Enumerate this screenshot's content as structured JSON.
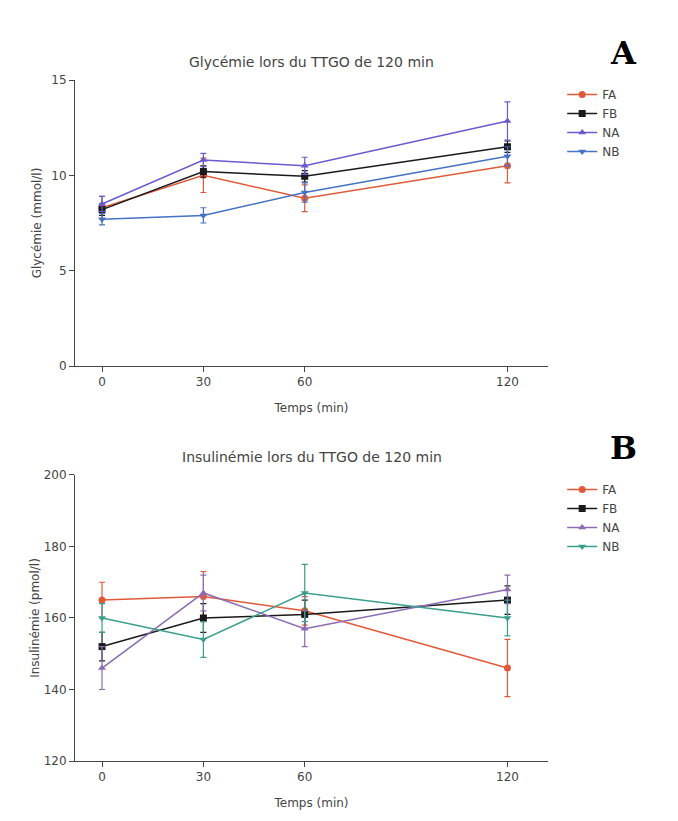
{
  "chart_data": [
    {
      "type": "line",
      "title": "Glycémie lors du TTGO de 120 min",
      "xlabel": "Temps (min)",
      "ylabel": "Glycémie (mmol/l)",
      "annotations": [
        "A"
      ],
      "x": [
        0,
        30,
        60,
        120
      ],
      "xlim": [
        -8,
        132
      ],
      "xticks": [
        0,
        30,
        60,
        120
      ],
      "ylim": [
        0,
        15
      ],
      "yticks": [
        0,
        5,
        10,
        15
      ],
      "grid": false,
      "legend": "right",
      "series": [
        {
          "name": "FA",
          "color": "#E05A3A",
          "marker": "circle",
          "line_style": "solid",
          "values": [
            8.3,
            10.0,
            8.8,
            10.5
          ],
          "errors": [
            0.6,
            0.9,
            0.7,
            0.9
          ]
        },
        {
          "name": "FB",
          "color": "#1a1a1a",
          "marker": "square",
          "line_style": "solid",
          "values": [
            8.2,
            10.2,
            9.95,
            11.5
          ],
          "errors": [
            0.3,
            0.3,
            0.3,
            0.3
          ]
        },
        {
          "name": "NA",
          "color": "#6A5ACD",
          "marker": "triangle-up",
          "line_style": "solid",
          "values": [
            8.5,
            10.8,
            10.5,
            12.85
          ],
          "errors": [
            0.4,
            0.35,
            0.45,
            1.0
          ]
        },
        {
          "name": "NB",
          "color": "#4472C4",
          "marker": "triangle-down",
          "line_style": "solid",
          "values": [
            7.7,
            7.9,
            9.1,
            11.0
          ],
          "errors": [
            0.3,
            0.4,
            0.5,
            0.5
          ]
        }
      ]
    },
    {
      "type": "line",
      "title": "Insulinémie lors du TTGO de 120 min",
      "xlabel": "Temps (min)",
      "ylabel": "Insulinémie (pmol/l)",
      "annotations": [
        "B"
      ],
      "x": [
        0,
        30,
        60,
        120
      ],
      "xlim": [
        -8,
        132
      ],
      "xticks": [
        0,
        30,
        60,
        120
      ],
      "ylim": [
        120,
        200
      ],
      "yticks": [
        120,
        140,
        160,
        180,
        200
      ],
      "grid": false,
      "legend": "right",
      "series": [
        {
          "name": "FA",
          "color": "#E05A3A",
          "marker": "circle",
          "line_style": "solid",
          "values": [
            165,
            166,
            162,
            146
          ],
          "errors": [
            5,
            7,
            4,
            8
          ]
        },
        {
          "name": "FB",
          "color": "#1a1a1a",
          "marker": "square",
          "line_style": "solid",
          "values": [
            152,
            160,
            161,
            165
          ],
          "errors": [
            4,
            4,
            4,
            4
          ]
        },
        {
          "name": "NA",
          "color": "#8B6BB1",
          "marker": "triangle-up",
          "line_style": "solid",
          "values": [
            146,
            167,
            157,
            168
          ],
          "errors": [
            6,
            5,
            5,
            4
          ]
        },
        {
          "name": "NB",
          "color": "#3A9E8C",
          "marker": "triangle-down",
          "line_style": "solid",
          "values": [
            160,
            154,
            167,
            160
          ],
          "errors": [
            4,
            5,
            8,
            5
          ]
        }
      ]
    }
  ]
}
